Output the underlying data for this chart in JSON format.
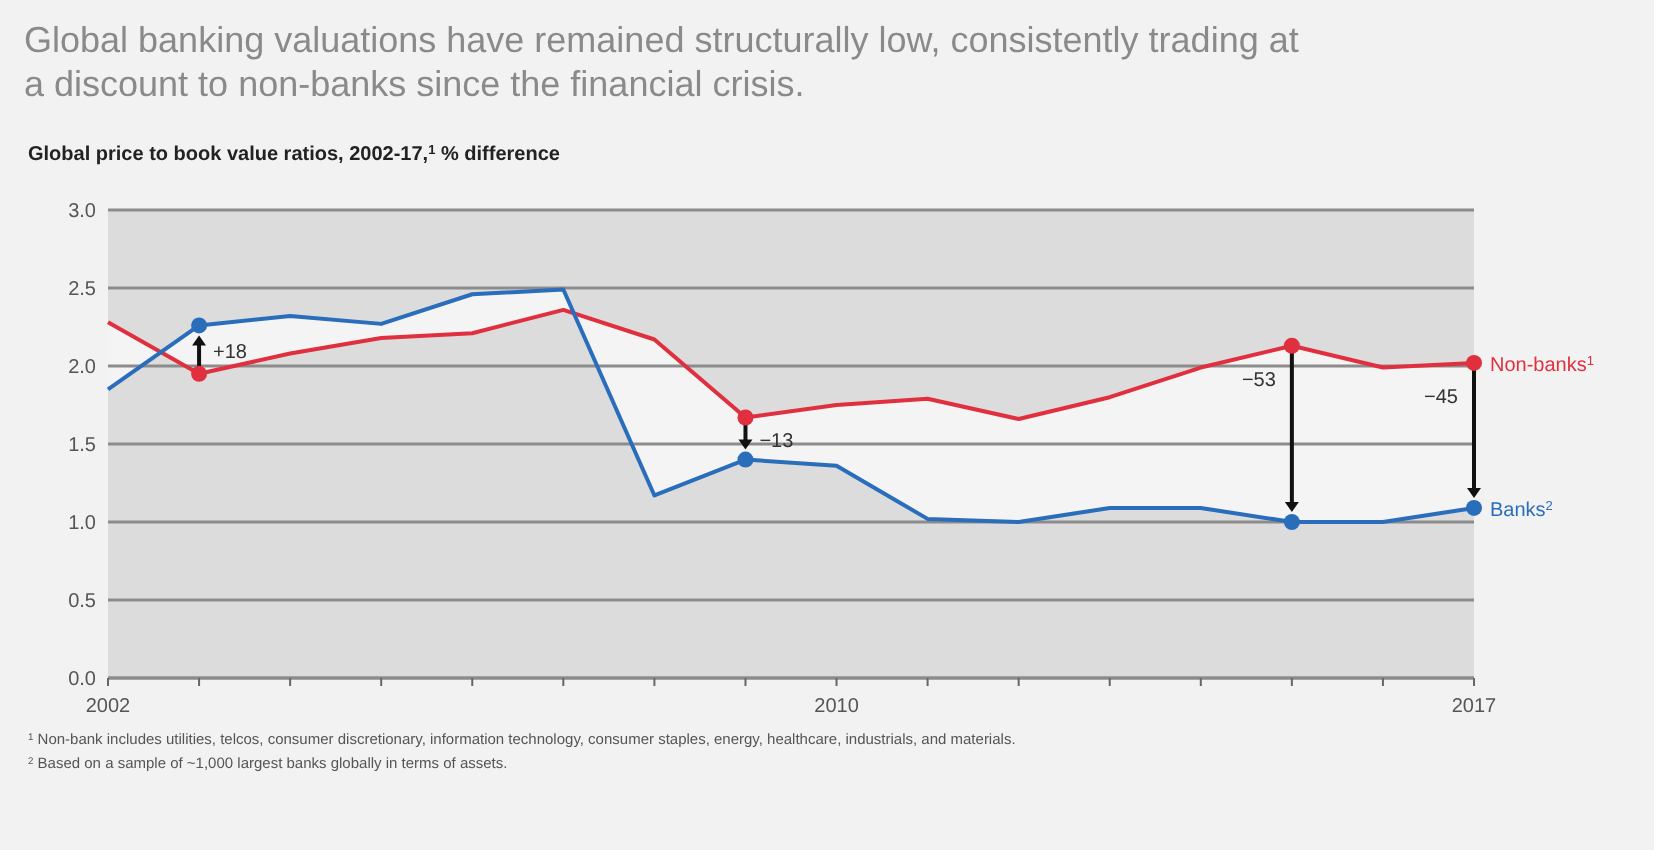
{
  "chart_data": {
    "type": "line",
    "title": "Global banking valuations have remained structurally low, consistently trading at a discount to non-banks since the financial crisis.",
    "subtitle": "Global price to book value ratios, 2002-17,$^{1}$ % difference",
    "x": [
      2002,
      2003,
      2004,
      2005,
      2006,
      2007,
      2008,
      2009,
      2010,
      2011,
      2012,
      2013,
      2014,
      2015,
      2016,
      2017
    ],
    "series": [
      {
        "name": "Non-banks$^{1}$",
        "color": "#e0303f",
        "values": [
          2.28,
          1.95,
          2.08,
          2.18,
          2.21,
          2.36,
          2.17,
          1.67,
          1.75,
          1.79,
          1.66,
          1.8,
          1.99,
          2.13,
          1.99,
          2.02
        ]
      },
      {
        "name": "Banks$^{2}$",
        "color": "#2a6ebb",
        "values": [
          1.85,
          2.26,
          2.32,
          2.27,
          2.46,
          2.49,
          1.17,
          1.4,
          1.36,
          1.02,
          1.0,
          1.09,
          1.09,
          1.0,
          1.0,
          1.09
        ]
      }
    ],
    "xlim": [
      2002,
      2017
    ],
    "xticks": [
      2002,
      {
        "value": 2003,
        "label": null
      },
      {
        "value": 2004,
        "label": null
      },
      {
        "value": 2005,
        "label": null
      },
      {
        "value": 2006,
        "label": null
      },
      {
        "value": 2007,
        "label": null
      },
      {
        "value": 2008,
        "label": null
      },
      {
        "value": 2009,
        "label": null
      },
      2010,
      {
        "value": 2011,
        "label": null
      },
      {
        "value": 2012,
        "label": null
      },
      {
        "value": 2013,
        "label": null
      },
      {
        "value": 2014,
        "label": null
      },
      {
        "value": 2015,
        "label": null
      },
      {
        "value": 2016,
        "label": null
      },
      2017
    ],
    "ylim": [
      0,
      3
    ],
    "yticks": [
      {
        "value": 0,
        "label": "0.0"
      },
      {
        "value": 0.5,
        "label": "0.5"
      },
      {
        "value": 1,
        "label": "1.0"
      },
      {
        "value": 1.5,
        "label": "1.5"
      },
      {
        "value": 2,
        "label": "2.0"
      },
      {
        "value": 2.5,
        "label": "2.5"
      },
      {
        "value": 3,
        "label": "3.0"
      }
    ],
    "grid": "y",
    "legend": "right",
    "line_style": "solid",
    "annotations": [
      {
        "text": "+18",
        "x": 2003,
        "y": 1.95
      },
      {
        "text": "−13",
        "x": 2009,
        "y": 1.67
      },
      {
        "text": "−53",
        "x": 2015,
        "y": 2.13
      },
      {
        "text": "−45",
        "x": 2017,
        "y": 2.02
      },
      "$^{1}$ Non-bank includes utilities, telcos, consumer discretionary, information technology, consumer staples, energy, healthcare, industrials, and materials.",
      "$^{2}$ Based on a sample of ~1,000 largest banks globally in terms of assets."
    ]
  }
}
